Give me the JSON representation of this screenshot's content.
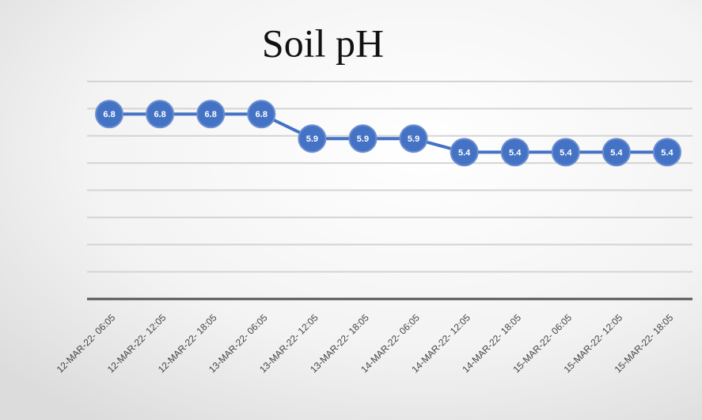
{
  "chart_data": {
    "type": "line",
    "title": "Soil pH",
    "categories": [
      "12-MAR-22- 06:05",
      "12-MAR-22- 12:05",
      "12-MAR-22- 18:05",
      "13-MAR-22- 06:05",
      "13-MAR-22- 12:05",
      "13-MAR-22- 18:05",
      "14-MAR-22- 06:05",
      "14-MAR-22- 12:05",
      "14-MAR-22- 18:05",
      "15-MAR-22- 06:05",
      "15-MAR-22- 12:05",
      "15-MAR-22- 18:05"
    ],
    "values": [
      6.8,
      6.8,
      6.8,
      6.8,
      5.9,
      5.9,
      5.9,
      5.4,
      5.4,
      5.4,
      5.4,
      5.4
    ],
    "color": "#4472c4",
    "ylim": [
      0,
      8
    ],
    "yticks": [
      0,
      1,
      2,
      3,
      4,
      5,
      6,
      7,
      8
    ],
    "grid": true
  }
}
